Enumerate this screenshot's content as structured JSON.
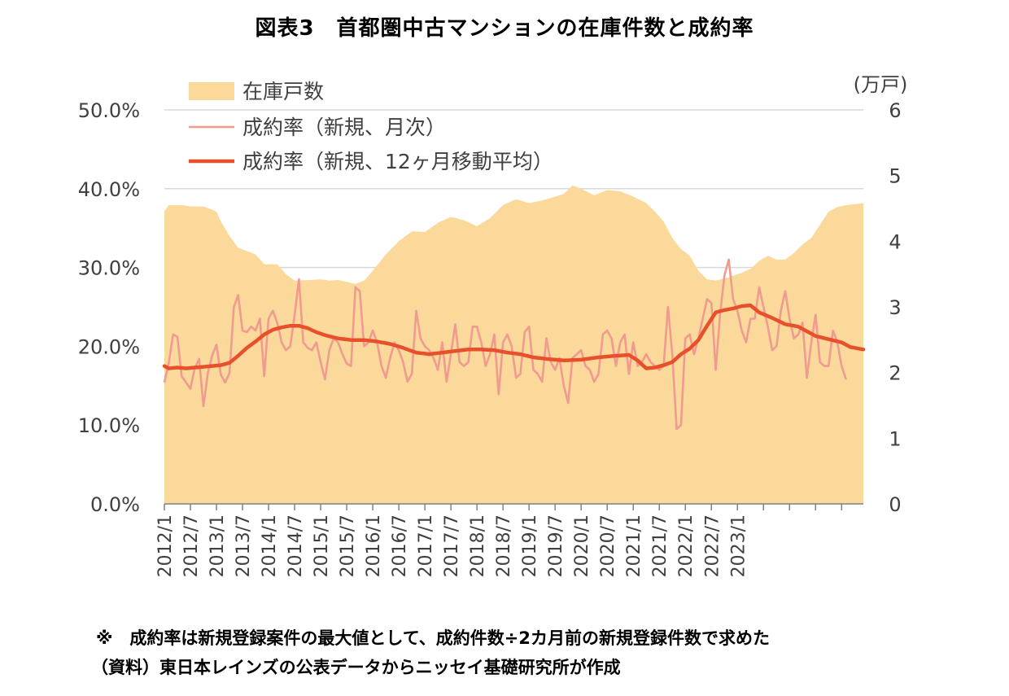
{
  "title": "図表3　首都圏中古マンションの在庫件数と成約率",
  "notes": [
    "※　成約率は新規登録案件の最大値として、成約件数÷2カ月前の新規登録件数で求めた",
    "（資料）東日本レインズの公表データからニッセイ基礎研究所が作成"
  ],
  "colors": {
    "inventory_fill": "#fbd99b",
    "monthly_line": "#f19a90",
    "ma_line": "#e8502c",
    "gridline": "#d9d9d9",
    "axis": "#808080"
  },
  "chart_data": {
    "type": "area",
    "left_axis": {
      "label": "",
      "ylim": [
        0,
        50
      ],
      "ticks": [
        "0.0%",
        "10.0%",
        "20.0%",
        "30.0%",
        "40.0%",
        "50.0%"
      ]
    },
    "right_axis": {
      "label": "(万戸)",
      "ylim": [
        0,
        6
      ],
      "ticks": [
        "0",
        "1",
        "2",
        "3",
        "4",
        "5",
        "6"
      ]
    },
    "x_tick_labels": [
      "2012/1",
      "2012/7",
      "2013/1",
      "2013/7",
      "2014/1",
      "2014/7",
      "2015/1",
      "2015/7",
      "2016/1",
      "2016/7",
      "2017/1",
      "2017/7",
      "2018/1",
      "2018/7",
      "2019/1",
      "2019/7",
      "2020/1",
      "2020/7",
      "2021/1",
      "2021/7",
      "2022/1",
      "2022/7",
      "2023/1"
    ],
    "grid": true,
    "legend_position": "top-left",
    "series": [
      {
        "name": "在庫戸数",
        "axis": "right",
        "kind": "area",
        "anchors": [
          [
            0,
            4.45
          ],
          [
            1,
            4.55
          ],
          [
            4,
            4.55
          ],
          [
            6,
            4.53
          ],
          [
            9,
            4.53
          ],
          [
            11,
            4.48
          ],
          [
            12,
            4.45
          ],
          [
            13,
            4.3
          ],
          [
            15,
            4.08
          ],
          [
            17,
            3.9
          ],
          [
            19,
            3.85
          ],
          [
            21,
            3.8
          ],
          [
            23,
            3.65
          ],
          [
            26,
            3.65
          ],
          [
            28,
            3.5
          ],
          [
            30,
            3.4
          ],
          [
            34,
            3.41
          ],
          [
            36,
            3.42
          ],
          [
            38,
            3.4
          ],
          [
            40,
            3.41
          ],
          [
            42,
            3.38
          ],
          [
            44,
            3.35
          ],
          [
            46,
            3.4
          ],
          [
            48,
            3.55
          ],
          [
            51,
            3.8
          ],
          [
            54,
            4.0
          ],
          [
            57,
            4.15
          ],
          [
            60,
            4.14
          ],
          [
            63,
            4.28
          ],
          [
            66,
            4.37
          ],
          [
            69,
            4.32
          ],
          [
            72,
            4.23
          ],
          [
            75,
            4.35
          ],
          [
            78,
            4.55
          ],
          [
            81,
            4.64
          ],
          [
            84,
            4.58
          ],
          [
            87,
            4.62
          ],
          [
            90,
            4.68
          ],
          [
            92,
            4.72
          ],
          [
            94,
            4.85
          ],
          [
            96,
            4.8
          ],
          [
            99,
            4.7
          ],
          [
            102,
            4.78
          ],
          [
            105,
            4.76
          ],
          [
            108,
            4.68
          ],
          [
            111,
            4.58
          ],
          [
            113,
            4.45
          ],
          [
            115,
            4.3
          ],
          [
            117,
            4.05
          ],
          [
            119,
            3.88
          ],
          [
            121,
            3.78
          ],
          [
            123,
            3.55
          ],
          [
            125,
            3.42
          ],
          [
            127,
            3.4
          ],
          [
            130,
            3.45
          ],
          [
            133,
            3.52
          ],
          [
            135,
            3.58
          ],
          [
            137,
            3.7
          ],
          [
            139,
            3.78
          ],
          [
            141,
            3.72
          ],
          [
            143,
            3.72
          ],
          [
            145,
            3.82
          ],
          [
            147,
            3.95
          ],
          [
            149,
            4.05
          ],
          [
            151,
            4.25
          ],
          [
            153,
            4.45
          ],
          [
            155,
            4.52
          ],
          [
            157,
            4.55
          ],
          [
            161,
            4.58
          ]
        ]
      },
      {
        "name": "成約率（新規、月次）",
        "axis": "left",
        "kind": "line",
        "values": [
          15.4,
          17.8,
          21.5,
          21.2,
          16.2,
          15.4,
          14.6,
          17.2,
          18.4,
          12.4,
          16.6,
          18.8,
          20.2,
          16.4,
          15.4,
          16.6,
          25.0,
          26.5,
          22.0,
          21.8,
          22.5,
          22.0,
          23.5,
          16.2,
          23.5,
          24.5,
          23.0,
          20.5,
          19.5,
          20.0,
          24.0,
          28.5,
          20.5,
          19.8,
          19.5,
          20.5,
          18.0,
          15.8,
          19.5,
          21.0,
          20.5,
          19.0,
          17.8,
          17.5,
          27.5,
          27.0,
          20.0,
          20.5,
          22.0,
          20.5,
          17.5,
          16.0,
          18.5,
          20.5,
          19.5,
          18.0,
          15.5,
          16.5,
          24.5,
          21.0,
          20.0,
          19.5,
          18.5,
          17.0,
          20.5,
          15.5,
          19.0,
          22.8,
          18.0,
          17.5,
          18.0,
          22.5,
          22.5,
          20.5,
          17.5,
          19.0,
          21.5,
          13.9,
          20.5,
          21.5,
          20.0,
          16.0,
          16.5,
          21.8,
          22.5,
          17.0,
          16.5,
          15.5,
          21.0,
          18.0,
          17.0,
          18.5,
          15.0,
          12.8,
          18.5,
          19.0,
          19.5,
          17.5,
          17.0,
          15.5,
          16.5,
          21.5,
          22.0,
          21.0,
          17.5,
          20.5,
          21.5,
          16.5,
          20.5,
          17.5,
          18.0,
          19.0,
          18.0,
          17.5,
          17.0,
          17.5,
          25.0,
          19.0,
          9.5,
          10.0,
          21.0,
          21.5,
          19.0,
          21.0,
          23.5,
          26.0,
          25.5,
          17.0,
          24.0,
          29.0,
          31.0,
          26.0,
          24.5,
          22.0,
          20.5,
          23.5,
          23.5,
          27.5,
          25.0,
          22.5,
          19.5,
          20.0,
          24.5,
          27.0,
          23.5,
          21.0,
          21.5,
          23.0,
          16.0,
          20.5,
          24.0,
          18.0,
          17.5,
          17.5,
          22.0,
          20.5,
          17.5,
          15.8
        ]
      },
      {
        "name": "成約率（新規、12ヶ月移動平均）",
        "axis": "left",
        "kind": "line",
        "anchors": [
          [
            0,
            17.5
          ],
          [
            1,
            17.2
          ],
          [
            3,
            17.3
          ],
          [
            5,
            17.2
          ],
          [
            9,
            17.4
          ],
          [
            13,
            17.6
          ],
          [
            15,
            17.9
          ],
          [
            17,
            18.8
          ],
          [
            19,
            19.8
          ],
          [
            21,
            20.6
          ],
          [
            23,
            21.5
          ],
          [
            25,
            22.1
          ],
          [
            27,
            22.4
          ],
          [
            29,
            22.6
          ],
          [
            31,
            22.6
          ],
          [
            33,
            22.3
          ],
          [
            35,
            21.8
          ],
          [
            37,
            21.4
          ],
          [
            40,
            21.0
          ],
          [
            43,
            20.8
          ],
          [
            46,
            20.8
          ],
          [
            49,
            20.6
          ],
          [
            52,
            20.3
          ],
          [
            55,
            19.8
          ],
          [
            58,
            19.2
          ],
          [
            61,
            19.0
          ],
          [
            64,
            19.2
          ],
          [
            67,
            19.4
          ],
          [
            70,
            19.6
          ],
          [
            73,
            19.6
          ],
          [
            76,
            19.5
          ],
          [
            79,
            19.2
          ],
          [
            82,
            19.0
          ],
          [
            85,
            18.6
          ],
          [
            88,
            18.4
          ],
          [
            92,
            18.2
          ],
          [
            96,
            18.3
          ],
          [
            100,
            18.6
          ],
          [
            104,
            18.8
          ],
          [
            107,
            18.9
          ],
          [
            109,
            18.2
          ],
          [
            111,
            17.2
          ],
          [
            113,
            17.3
          ],
          [
            115,
            17.6
          ],
          [
            117,
            18.0
          ],
          [
            119,
            19.0
          ],
          [
            121,
            19.7
          ],
          [
            123,
            20.8
          ],
          [
            125,
            22.6
          ],
          [
            127,
            24.3
          ],
          [
            129,
            24.6
          ],
          [
            131,
            24.8
          ],
          [
            133,
            25.1
          ],
          [
            135,
            25.2
          ],
          [
            137,
            24.3
          ],
          [
            140,
            23.6
          ],
          [
            143,
            22.8
          ],
          [
            146,
            22.5
          ],
          [
            148,
            21.9
          ],
          [
            150,
            21.3
          ],
          [
            153,
            20.9
          ],
          [
            156,
            20.5
          ],
          [
            158,
            19.9
          ],
          [
            161,
            19.6
          ]
        ]
      }
    ],
    "legend_labels": [
      "在庫戸数",
      "成約率（新規、月次）",
      "成約率（新規、12ヶ月移動平均）"
    ]
  }
}
